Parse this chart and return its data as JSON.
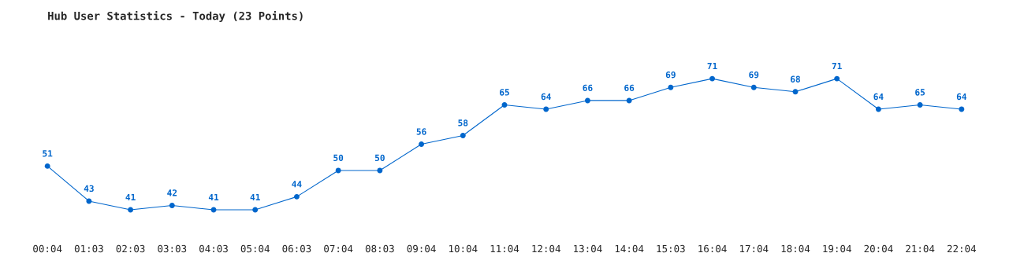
{
  "chart_data": {
    "type": "line",
    "title": "Hub User Statistics - Today (23 Points)",
    "categories": [
      "00:04",
      "01:03",
      "02:03",
      "03:03",
      "04:03",
      "05:04",
      "06:03",
      "07:04",
      "08:03",
      "09:04",
      "10:04",
      "11:04",
      "12:04",
      "13:04",
      "14:04",
      "15:03",
      "16:04",
      "17:04",
      "18:04",
      "19:04",
      "20:04",
      "21:04",
      "22:04"
    ],
    "series": [
      {
        "color": "#0066cc",
        "values": [
          51,
          43,
          41,
          42,
          41,
          41,
          44,
          50,
          50,
          56,
          58,
          65,
          64,
          66,
          66,
          69,
          71,
          69,
          68,
          71,
          64,
          65,
          64
        ]
      }
    ],
    "data_labels": true,
    "marker": "circle",
    "grid": false,
    "legend": false
  }
}
